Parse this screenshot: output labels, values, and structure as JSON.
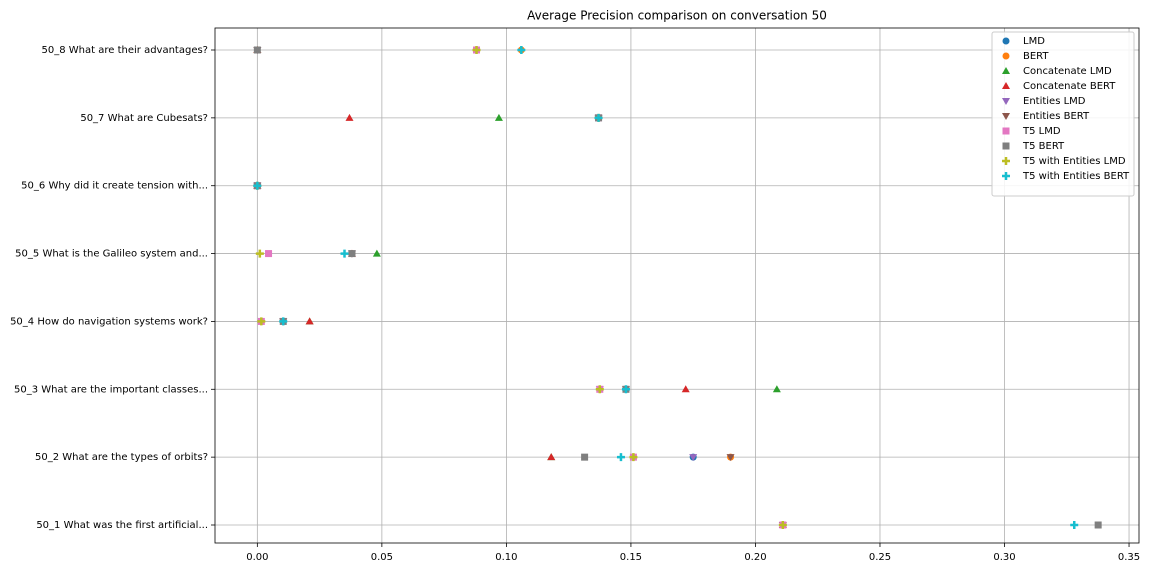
{
  "chart_data": {
    "type": "scatter",
    "title": "Average Precision comparison on conversation 50",
    "categories": [
      "50_8 What are their advantages?",
      "50_7 What are Cubesats?",
      "50_6 Why did it create tension with...",
      "50_5 What is the Galileo system and...",
      "50_4 How do navigation systems work?",
      "50_3 What are the important classes...",
      "50_2 What are the types of orbits?",
      "50_1 What was the first artificial..."
    ],
    "series": [
      {
        "name": "LMD",
        "color": "#1f77b4",
        "marker": "circle",
        "values": [
          0.088,
          0.137,
          0,
          0.038,
          0.0104,
          0.1375,
          0.175,
          0.211
        ]
      },
      {
        "name": "BERT",
        "color": "#ff7f0e",
        "marker": "circle",
        "values": [
          0.106,
          0.137,
          0,
          0.038,
          0.0016,
          0.148,
          0.19,
          0.211
        ]
      },
      {
        "name": "Concatenate LMD",
        "color": "#2ca02c",
        "marker": "triangle-up",
        "values": [
          0,
          0.097,
          0,
          0.048,
          0.021,
          0.2086,
          0.118,
          0.211
        ]
      },
      {
        "name": "Concatenate BERT",
        "color": "#d62728",
        "marker": "triangle-up",
        "values": [
          0,
          0.037,
          0,
          0.038,
          0.021,
          0.172,
          0.118,
          0.211
        ]
      },
      {
        "name": "Entities LMD",
        "color": "#9467bd",
        "marker": "triangle-down",
        "values": [
          0,
          0.137,
          0,
          0.038,
          0.0104,
          0.1375,
          0.175,
          0.211
        ]
      },
      {
        "name": "Entities BERT",
        "color": "#8c564b",
        "marker": "triangle-down",
        "values": [
          0,
          0.137,
          0,
          0.038,
          0.0104,
          0.148,
          0.19,
          0.211
        ]
      },
      {
        "name": "T5 LMD",
        "color": "#e377c2",
        "marker": "square",
        "values": [
          0.088,
          0.137,
          0,
          0.0045,
          0.0016,
          0.1375,
          0.151,
          0.211
        ]
      },
      {
        "name": "T5 BERT",
        "color": "#7f7f7f",
        "marker": "square",
        "values": [
          0,
          0.137,
          0,
          0.038,
          0.0104,
          0.148,
          0.1314,
          0.3376
        ]
      },
      {
        "name": "T5 with Entities LMD",
        "color": "#bcbd22",
        "marker": "plus",
        "values": [
          0.088,
          0.137,
          0,
          0.001,
          0.0016,
          0.1375,
          0.151,
          0.211
        ]
      },
      {
        "name": "T5 with Entities BERT",
        "color": "#17becf",
        "marker": "plus",
        "values": [
          0.106,
          0.137,
          0,
          0.035,
          0.0104,
          0.148,
          0.146,
          0.328
        ]
      }
    ],
    "xlim": [
      -0.017,
      0.354
    ],
    "xticks": [
      {
        "value": 0,
        "label": "0.00"
      },
      0.05,
      {
        "value": 0.1,
        "label": "0.10"
      },
      0.15,
      {
        "value": 0.2,
        "label": "0.20"
      },
      0.25,
      {
        "value": 0.3,
        "label": "0.30"
      },
      0.35
    ],
    "grid": true,
    "legend": "upper right"
  }
}
